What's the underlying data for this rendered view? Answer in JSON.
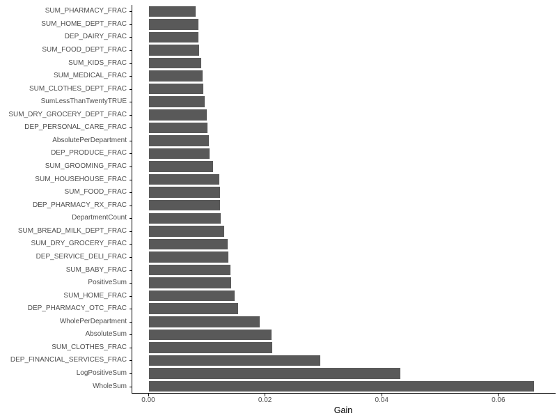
{
  "chart_data": {
    "type": "bar",
    "orientation": "horizontal",
    "title": "",
    "xlabel": "Gain",
    "ylabel": "",
    "grid": false,
    "legend": "none",
    "bar_color": "#595959",
    "axis_line_color": "#000000",
    "axis_text_color": "#4d4d4d",
    "xlim": [
      0,
      0.069
    ],
    "x_ticks": [
      0.0,
      0.02,
      0.04,
      0.06
    ],
    "x_tick_labels": [
      "0.00",
      "0.02",
      "0.04",
      "0.06"
    ],
    "categories": [
      "SUM_PHARMACY_FRAC",
      "SUM_HOME_DEPT_FRAC",
      "DEP_DAIRY_FRAC",
      "SUM_FOOD_DEPT_FRAC",
      "SUM_KIDS_FRAC",
      "SUM_MEDICAL_FRAC",
      "SUM_CLOTHES_DEPT_FRAC",
      "SumLessThanTwentyTRUE",
      "SUM_DRY_GROCERY_DEPT_FRAC",
      "DEP_PERSONAL_CARE_FRAC",
      "AbsolutePerDepartment",
      "DEP_PRODUCE_FRAC",
      "SUM_GROOMING_FRAC",
      "SUM_HOUSEHOUSE_FRAC",
      "SUM_FOOD_FRAC",
      "DEP_PHARMACY_RX_FRAC",
      "DepartmentCount",
      "SUM_BREAD_MILK_DEPT_FRAC",
      "SUM_DRY_GROCERY_FRAC",
      "DEP_SERVICE_DELI_FRAC",
      "SUM_BABY_FRAC",
      "PositiveSum",
      "SUM_HOME_FRAC",
      "DEP_PHARMACY_OTC_FRAC",
      "WholePerDepartment",
      "AbsoluteSum",
      "SUM_CLOTHES_FRAC",
      "DEP_FINANCIAL_SERVICES_FRAC",
      "LogPositiveSum",
      "WholeSum"
    ],
    "values": [
      0.008,
      0.0085,
      0.0085,
      0.0086,
      0.009,
      0.0092,
      0.0093,
      0.0096,
      0.0099,
      0.01,
      0.0102,
      0.0104,
      0.011,
      0.012,
      0.0122,
      0.0122,
      0.0123,
      0.0129,
      0.0135,
      0.0136,
      0.014,
      0.0141,
      0.0147,
      0.0153,
      0.019,
      0.021,
      0.0211,
      0.0294,
      0.0431,
      0.066
    ]
  }
}
